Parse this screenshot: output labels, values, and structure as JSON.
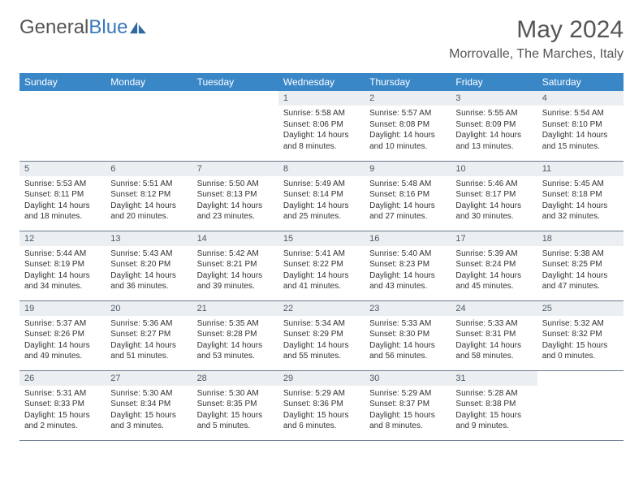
{
  "brand": {
    "part1": "General",
    "part2": "Blue"
  },
  "title": "May 2024",
  "location": "Morrovalle, The Marches, Italy",
  "colors": {
    "header_bg": "#3a87c8",
    "header_text": "#ffffff",
    "daynum_bg": "#eceff1",
    "daynum_text": "#4a5a6a",
    "border": "#6b7a8f",
    "body_text": "#333333",
    "logo_gray": "#555555",
    "logo_blue": "#3a7ab8"
  },
  "fonts": {
    "title_pt": 30,
    "location_pt": 16,
    "header_pt": 12,
    "daynum_pt": 11,
    "body_pt": 10
  },
  "weekdays": [
    "Sunday",
    "Monday",
    "Tuesday",
    "Wednesday",
    "Thursday",
    "Friday",
    "Saturday"
  ],
  "weeks": [
    [
      null,
      null,
      null,
      {
        "n": "1",
        "sr": "Sunrise: 5:58 AM",
        "ss": "Sunset: 8:06 PM",
        "d1": "Daylight: 14 hours",
        "d2": "and 8 minutes."
      },
      {
        "n": "2",
        "sr": "Sunrise: 5:57 AM",
        "ss": "Sunset: 8:08 PM",
        "d1": "Daylight: 14 hours",
        "d2": "and 10 minutes."
      },
      {
        "n": "3",
        "sr": "Sunrise: 5:55 AM",
        "ss": "Sunset: 8:09 PM",
        "d1": "Daylight: 14 hours",
        "d2": "and 13 minutes."
      },
      {
        "n": "4",
        "sr": "Sunrise: 5:54 AM",
        "ss": "Sunset: 8:10 PM",
        "d1": "Daylight: 14 hours",
        "d2": "and 15 minutes."
      }
    ],
    [
      {
        "n": "5",
        "sr": "Sunrise: 5:53 AM",
        "ss": "Sunset: 8:11 PM",
        "d1": "Daylight: 14 hours",
        "d2": "and 18 minutes."
      },
      {
        "n": "6",
        "sr": "Sunrise: 5:51 AM",
        "ss": "Sunset: 8:12 PM",
        "d1": "Daylight: 14 hours",
        "d2": "and 20 minutes."
      },
      {
        "n": "7",
        "sr": "Sunrise: 5:50 AM",
        "ss": "Sunset: 8:13 PM",
        "d1": "Daylight: 14 hours",
        "d2": "and 23 minutes."
      },
      {
        "n": "8",
        "sr": "Sunrise: 5:49 AM",
        "ss": "Sunset: 8:14 PM",
        "d1": "Daylight: 14 hours",
        "d2": "and 25 minutes."
      },
      {
        "n": "9",
        "sr": "Sunrise: 5:48 AM",
        "ss": "Sunset: 8:16 PM",
        "d1": "Daylight: 14 hours",
        "d2": "and 27 minutes."
      },
      {
        "n": "10",
        "sr": "Sunrise: 5:46 AM",
        "ss": "Sunset: 8:17 PM",
        "d1": "Daylight: 14 hours",
        "d2": "and 30 minutes."
      },
      {
        "n": "11",
        "sr": "Sunrise: 5:45 AM",
        "ss": "Sunset: 8:18 PM",
        "d1": "Daylight: 14 hours",
        "d2": "and 32 minutes."
      }
    ],
    [
      {
        "n": "12",
        "sr": "Sunrise: 5:44 AM",
        "ss": "Sunset: 8:19 PM",
        "d1": "Daylight: 14 hours",
        "d2": "and 34 minutes."
      },
      {
        "n": "13",
        "sr": "Sunrise: 5:43 AM",
        "ss": "Sunset: 8:20 PM",
        "d1": "Daylight: 14 hours",
        "d2": "and 36 minutes."
      },
      {
        "n": "14",
        "sr": "Sunrise: 5:42 AM",
        "ss": "Sunset: 8:21 PM",
        "d1": "Daylight: 14 hours",
        "d2": "and 39 minutes."
      },
      {
        "n": "15",
        "sr": "Sunrise: 5:41 AM",
        "ss": "Sunset: 8:22 PM",
        "d1": "Daylight: 14 hours",
        "d2": "and 41 minutes."
      },
      {
        "n": "16",
        "sr": "Sunrise: 5:40 AM",
        "ss": "Sunset: 8:23 PM",
        "d1": "Daylight: 14 hours",
        "d2": "and 43 minutes."
      },
      {
        "n": "17",
        "sr": "Sunrise: 5:39 AM",
        "ss": "Sunset: 8:24 PM",
        "d1": "Daylight: 14 hours",
        "d2": "and 45 minutes."
      },
      {
        "n": "18",
        "sr": "Sunrise: 5:38 AM",
        "ss": "Sunset: 8:25 PM",
        "d1": "Daylight: 14 hours",
        "d2": "and 47 minutes."
      }
    ],
    [
      {
        "n": "19",
        "sr": "Sunrise: 5:37 AM",
        "ss": "Sunset: 8:26 PM",
        "d1": "Daylight: 14 hours",
        "d2": "and 49 minutes."
      },
      {
        "n": "20",
        "sr": "Sunrise: 5:36 AM",
        "ss": "Sunset: 8:27 PM",
        "d1": "Daylight: 14 hours",
        "d2": "and 51 minutes."
      },
      {
        "n": "21",
        "sr": "Sunrise: 5:35 AM",
        "ss": "Sunset: 8:28 PM",
        "d1": "Daylight: 14 hours",
        "d2": "and 53 minutes."
      },
      {
        "n": "22",
        "sr": "Sunrise: 5:34 AM",
        "ss": "Sunset: 8:29 PM",
        "d1": "Daylight: 14 hours",
        "d2": "and 55 minutes."
      },
      {
        "n": "23",
        "sr": "Sunrise: 5:33 AM",
        "ss": "Sunset: 8:30 PM",
        "d1": "Daylight: 14 hours",
        "d2": "and 56 minutes."
      },
      {
        "n": "24",
        "sr": "Sunrise: 5:33 AM",
        "ss": "Sunset: 8:31 PM",
        "d1": "Daylight: 14 hours",
        "d2": "and 58 minutes."
      },
      {
        "n": "25",
        "sr": "Sunrise: 5:32 AM",
        "ss": "Sunset: 8:32 PM",
        "d1": "Daylight: 15 hours",
        "d2": "and 0 minutes."
      }
    ],
    [
      {
        "n": "26",
        "sr": "Sunrise: 5:31 AM",
        "ss": "Sunset: 8:33 PM",
        "d1": "Daylight: 15 hours",
        "d2": "and 2 minutes."
      },
      {
        "n": "27",
        "sr": "Sunrise: 5:30 AM",
        "ss": "Sunset: 8:34 PM",
        "d1": "Daylight: 15 hours",
        "d2": "and 3 minutes."
      },
      {
        "n": "28",
        "sr": "Sunrise: 5:30 AM",
        "ss": "Sunset: 8:35 PM",
        "d1": "Daylight: 15 hours",
        "d2": "and 5 minutes."
      },
      {
        "n": "29",
        "sr": "Sunrise: 5:29 AM",
        "ss": "Sunset: 8:36 PM",
        "d1": "Daylight: 15 hours",
        "d2": "and 6 minutes."
      },
      {
        "n": "30",
        "sr": "Sunrise: 5:29 AM",
        "ss": "Sunset: 8:37 PM",
        "d1": "Daylight: 15 hours",
        "d2": "and 8 minutes."
      },
      {
        "n": "31",
        "sr": "Sunrise: 5:28 AM",
        "ss": "Sunset: 8:38 PM",
        "d1": "Daylight: 15 hours",
        "d2": "and 9 minutes."
      },
      null
    ]
  ]
}
